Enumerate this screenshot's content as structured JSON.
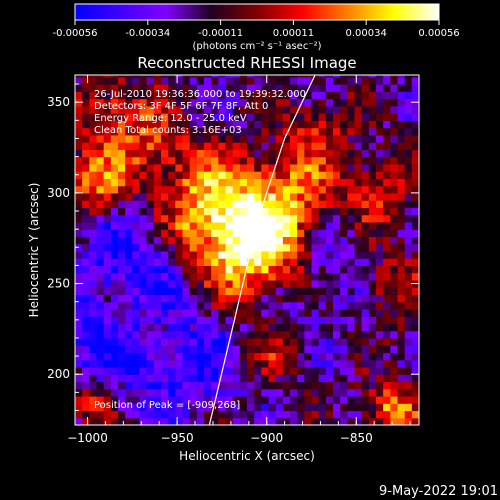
{
  "chart_data": {
    "type": "heatmap",
    "title": "Reconstructed RHESSI Image",
    "xlabel": "Heliocentric X (arcsec)",
    "ylabel": "Heliocentric Y (arcsec)",
    "xlim": [
      -1007,
      -815
    ],
    "ylim": [
      172,
      365
    ],
    "xticks": [
      -1000,
      -950,
      -900,
      -850
    ],
    "yticks": [
      200,
      250,
      300,
      350
    ],
    "colorbar": {
      "label": "(photons cm⁻² s⁻¹ asec⁻²)",
      "min": -0.00056,
      "max": 0.00056,
      "ticks": [
        "-0.00056",
        "-0.00034",
        "-0.00011",
        "0.00011",
        "0.00034",
        "0.00056"
      ],
      "stops": [
        "#0000ff",
        "#4000ff",
        "#8000ff",
        "#200020",
        "#800000",
        "#ff0000",
        "#ff8000",
        "#ffff00",
        "#ffffff"
      ]
    },
    "info_lines": [
      "26-Jul-2010 19:36:36.000 to 19:39:32.000",
      "Detectors: 3F 4F 5F 6F 7F 8F, Att 0",
      "Energy Range: 12.0 - 25.0 keV",
      "Clean    Total counts: 3.16E+03"
    ],
    "peak_text": "Position of Peak = [-909,268]",
    "peak": [
      -909,
      268
    ],
    "hotspots": [
      {
        "x": -909,
        "y": 268,
        "v": 1.0,
        "r": 22
      },
      {
        "x": -935,
        "y": 292,
        "v": 0.75,
        "r": 20
      },
      {
        "x": -890,
        "y": 300,
        "v": 0.55,
        "r": 18
      },
      {
        "x": -995,
        "y": 305,
        "v": 0.7,
        "r": 15
      },
      {
        "x": -985,
        "y": 345,
        "v": 0.55,
        "r": 14
      },
      {
        "x": -960,
        "y": 325,
        "v": 0.45,
        "r": 14
      },
      {
        "x": -870,
        "y": 335,
        "v": 0.4,
        "r": 14
      },
      {
        "x": -840,
        "y": 300,
        "v": 0.5,
        "r": 14
      },
      {
        "x": -830,
        "y": 250,
        "v": 0.45,
        "r": 14
      },
      {
        "x": -830,
        "y": 180,
        "v": 0.8,
        "r": 10
      },
      {
        "x": -895,
        "y": 215,
        "v": 0.35,
        "r": 14
      },
      {
        "x": -960,
        "y": 230,
        "v": 0.3,
        "r": 14
      },
      {
        "x": -1000,
        "y": 185,
        "v": 0.45,
        "r": 10
      }
    ],
    "coldspots": [
      {
        "x": -975,
        "y": 270,
        "v": -0.9,
        "r": 25
      },
      {
        "x": -950,
        "y": 215,
        "v": -1.0,
        "r": 26
      },
      {
        "x": -880,
        "y": 240,
        "v": -0.6,
        "r": 18
      },
      {
        "x": -1000,
        "y": 215,
        "v": -0.6,
        "r": 15
      },
      {
        "x": -855,
        "y": 270,
        "v": -0.5,
        "r": 15
      }
    ],
    "limb_curve": [
      [
        -932,
        172
      ],
      [
        -918,
        230
      ],
      [
        -905,
        285
      ],
      [
        -890,
        330
      ],
      [
        -873,
        365
      ]
    ]
  },
  "footer": {
    "timestamp": "9-May-2022 19:01"
  }
}
